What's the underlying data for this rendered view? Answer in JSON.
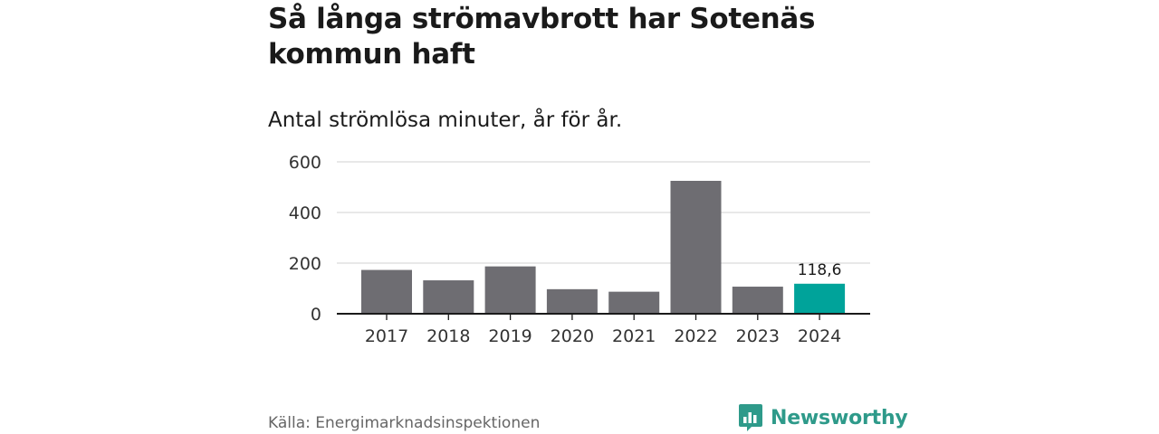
{
  "header": {
    "title": "Så långa strömavbrott har Sotenäs kommun haft",
    "subtitle": "Antal strömlösa minuter, år för år."
  },
  "footer": {
    "source": "Källa: Energimarknadsinspektionen",
    "brand_name": "Newsworthy",
    "brand_icon": "bar-chart-logo-icon"
  },
  "colors": {
    "bar": "#6e6d72",
    "highlight": "#00a39a",
    "grid": "#d9d9d9",
    "axis": "#1a1a1a",
    "brand": "#2e9a8a"
  },
  "chart_data": {
    "type": "bar",
    "title": "Så långa strömavbrott har Sotenäs kommun haft",
    "subtitle": "Antal strömlösa minuter, år för år.",
    "xlabel": "",
    "ylabel": "",
    "categories": [
      "2017",
      "2018",
      "2019",
      "2020",
      "2021",
      "2022",
      "2023",
      "2024"
    ],
    "values": [
      173,
      132,
      187,
      97,
      87,
      525,
      107,
      118.6
    ],
    "highlight_index": 7,
    "data_labels": [
      {
        "index": 7,
        "text": "118,6"
      }
    ],
    "yticks": [
      "0",
      "200",
      "400",
      "600"
    ],
    "ylim": [
      0,
      600
    ],
    "grid": true,
    "legend": "none"
  }
}
